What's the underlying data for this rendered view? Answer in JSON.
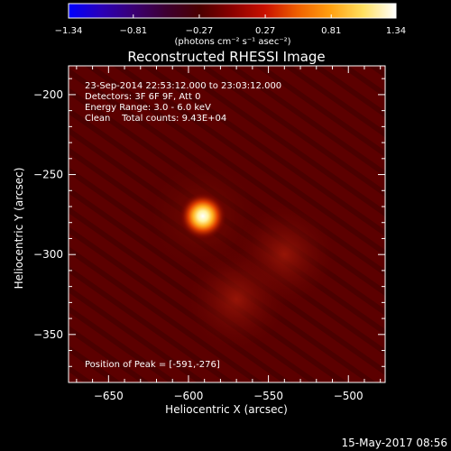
{
  "colorbar": {
    "ticks": [
      "-1.34",
      "-0.81",
      "-0.27",
      "0.27",
      "0.81",
      "1.34"
    ],
    "unit_label": "(photons cm⁻² s⁻¹ asec⁻²)",
    "range": [
      -1.34,
      1.34
    ]
  },
  "footer": {
    "timestamp": "15-May-2017 08:56"
  },
  "chart_data": {
    "type": "heatmap",
    "title": "Reconstructed RHESSI Image",
    "xlabel": "Heliocentric X (arcsec)",
    "ylabel": "Heliocentric Y (arcsec)",
    "xlim": [
      -675,
      -477
    ],
    "ylim": [
      -380,
      -182
    ],
    "x_ticks": [
      -650,
      -600,
      -550,
      -500
    ],
    "y_ticks": [
      -200,
      -250,
      -300,
      -350
    ],
    "x_tick_labels": [
      "-650",
      "-600",
      "-550",
      "-500"
    ],
    "y_tick_labels": [
      "-200",
      "-250",
      "-300",
      "-350"
    ],
    "annotations": [
      "23-Sep-2014 22:53:12.000 to 23:03:12.000",
      "Detectors: 3F 6F 9F, Att 0",
      "Energy Range: 3.0 - 6.0 keV",
      "Clean    Total counts: 9.43E+04"
    ],
    "peak_label": "Position of Peak = [-591,-276]",
    "peak": {
      "x": -591,
      "y": -276,
      "value": 1.34
    },
    "secondary_sources": [
      {
        "x": -540,
        "y": -300,
        "value": 0.35
      },
      {
        "x": -570,
        "y": -328,
        "value": 0.3
      }
    ],
    "colormap": [
      "#0000ff",
      "#2a00b8",
      "#3a0072",
      "#3d0030",
      "#4a0000",
      "#8a0000",
      "#c81000",
      "#f06000",
      "#ffa010",
      "#ffe060",
      "#ffffff"
    ]
  }
}
